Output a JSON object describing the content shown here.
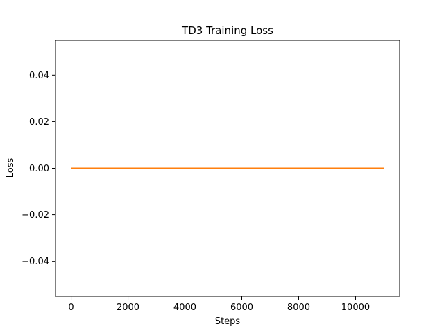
{
  "chart_data": {
    "type": "line",
    "title": "TD3 Training Loss",
    "xlabel": "Steps",
    "ylabel": "Loss",
    "xlim": [
      -550,
      11550
    ],
    "ylim": [
      -0.055,
      0.055
    ],
    "xticks": [
      0,
      2000,
      4000,
      6000,
      8000,
      10000
    ],
    "yticks": [
      -0.04,
      -0.02,
      0.0,
      0.02,
      0.04
    ],
    "xtick_labels": [
      "0",
      "2000",
      "4000",
      "6000",
      "8000",
      "10000"
    ],
    "ytick_labels": [
      "−0.04",
      "−0.02",
      "0.00",
      "0.02",
      "0.04"
    ],
    "grid": false,
    "series": [
      {
        "x": [
          0,
          11000
        ],
        "y": [
          0,
          0
        ],
        "color": "#1f77b4"
      },
      {
        "x": [
          0,
          11000
        ],
        "y": [
          0,
          0
        ],
        "color": "#ff7f0e"
      }
    ]
  }
}
